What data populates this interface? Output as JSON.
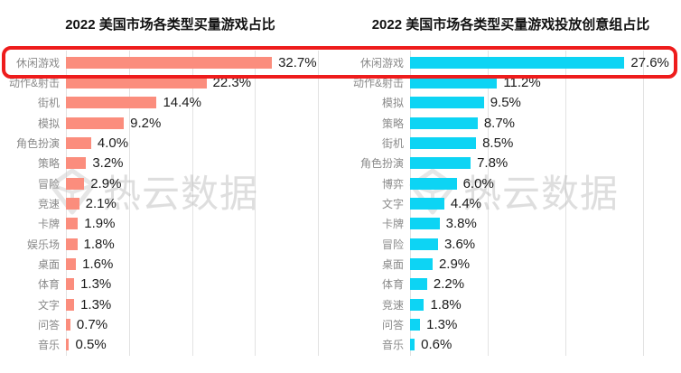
{
  "watermark": {
    "text": "热云数据",
    "logo": "gem-icon"
  },
  "highlight": {
    "highlighted_category": "休闲游戏",
    "color": "#ee1c1c"
  },
  "chart_data": [
    {
      "type": "bar",
      "orientation": "horizontal",
      "title": "2022 美国市场各类型买量游戏占比",
      "categories": [
        "休闲游戏",
        "动作&射击",
        "街机",
        "模拟",
        "角色扮演",
        "策略",
        "冒险",
        "竞速",
        "卡牌",
        "娱乐场",
        "桌面",
        "体育",
        "文字",
        "问答",
        "音乐"
      ],
      "values": [
        32.7,
        22.3,
        14.4,
        9.2,
        4.0,
        3.2,
        2.9,
        2.1,
        1.9,
        1.8,
        1.6,
        1.3,
        1.3,
        0.7,
        0.5
      ],
      "value_labels": [
        "32.7%",
        "22.3%",
        "14.4%",
        "9.2%",
        "4.0%",
        "3.2%",
        "2.9%",
        "2.1%",
        "1.9%",
        "1.8%",
        "1.6%",
        "1.3%",
        "1.3%",
        "0.7%",
        "0.5%"
      ],
      "xlabel": "",
      "ylabel": "",
      "xlim": [
        0,
        40
      ],
      "grid_interval": 10,
      "grid": true,
      "legend": false,
      "bar_color": "#fb8d7d"
    },
    {
      "type": "bar",
      "orientation": "horizontal",
      "title": "2022 美国市场各类型买量游戏投放创意组占比",
      "categories": [
        "休闲游戏",
        "动作&射击",
        "模拟",
        "策略",
        "街机",
        "角色扮演",
        "博弈",
        "文字",
        "卡牌",
        "冒险",
        "桌面",
        "体育",
        "竞速",
        "问答",
        "音乐"
      ],
      "values": [
        27.6,
        11.2,
        9.5,
        8.7,
        8.5,
        7.8,
        6.0,
        4.4,
        3.8,
        3.6,
        2.9,
        2.2,
        1.8,
        1.3,
        0.6
      ],
      "value_labels": [
        "27.6%",
        "11.2%",
        "9.5%",
        "8.7%",
        "8.5%",
        "7.8%",
        "6.0%",
        "4.4%",
        "3.8%",
        "3.6%",
        "2.9%",
        "2.2%",
        "1.8%",
        "1.3%",
        "0.6%"
      ],
      "xlabel": "",
      "ylabel": "",
      "xlim": [
        0,
        30
      ],
      "grid_interval": 10,
      "grid": true,
      "legend": false,
      "bar_color": "#0dd4f4"
    }
  ]
}
